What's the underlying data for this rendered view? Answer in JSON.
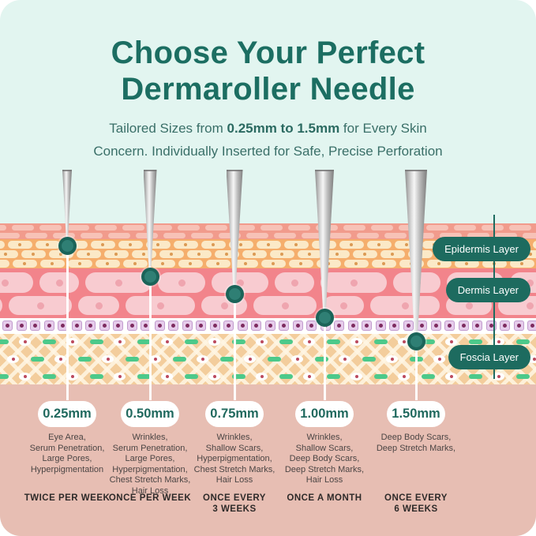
{
  "header": {
    "title_line1": "Choose Your Perfect",
    "title_line2": "Dermaroller Needle",
    "subtitle_pre": "Tailored Sizes from ",
    "subtitle_bold": "0.25mm to 1.5mm",
    "subtitle_post": " for Every Skin",
    "subtitle_line2": "Concern. Individually Inserted for Safe, Precise Perforation"
  },
  "diagram": {
    "layers": [
      {
        "label": "Epidermis Layer"
      },
      {
        "label": "Dermis Layer"
      },
      {
        "label": "Foscia Layer"
      }
    ]
  },
  "columns": [
    {
      "size": "0.25mm",
      "uses": "Eye Area,\nSerum Penetration,\nLarge Pores,\nHyperpigmentation",
      "frequency": "TWICE PER WEEK"
    },
    {
      "size": "0.50mm",
      "uses": "Wrinkles,\nSerum Penetration,\nLarge Pores,\nHyperpigmentation,\nChest Stretch Marks,\nHair Loss",
      "frequency": "ONCE PER WEEK"
    },
    {
      "size": "0.75mm",
      "uses": "Wrinkles,\nShallow Scars,\nHyperpigmentation,\nChest Stretch Marks,\nHair Loss",
      "frequency": "ONCE EVERY\n3 WEEKS"
    },
    {
      "size": "1.00mm",
      "uses": "Wrinkles,\nShallow Scars,\nDeep Body Scars,\nDeep Stretch Marks,\nHair Loss",
      "frequency": "ONCE A MONTH"
    },
    {
      "size": "1.50mm",
      "uses": "Deep Body Scars,\nDeep Stretch Marks,",
      "frequency": "ONCE EVERY\n6 WEEKS"
    }
  ],
  "colors": {
    "accent_teal": "#1D6B5F",
    "card_mint": "#E2F5F0",
    "epidermis_orange": "#F5AE6C",
    "dermis_pink": "#F2848B",
    "fascia_cream": "#F3CD9C",
    "bottom_rose": "#E7BEB3"
  }
}
